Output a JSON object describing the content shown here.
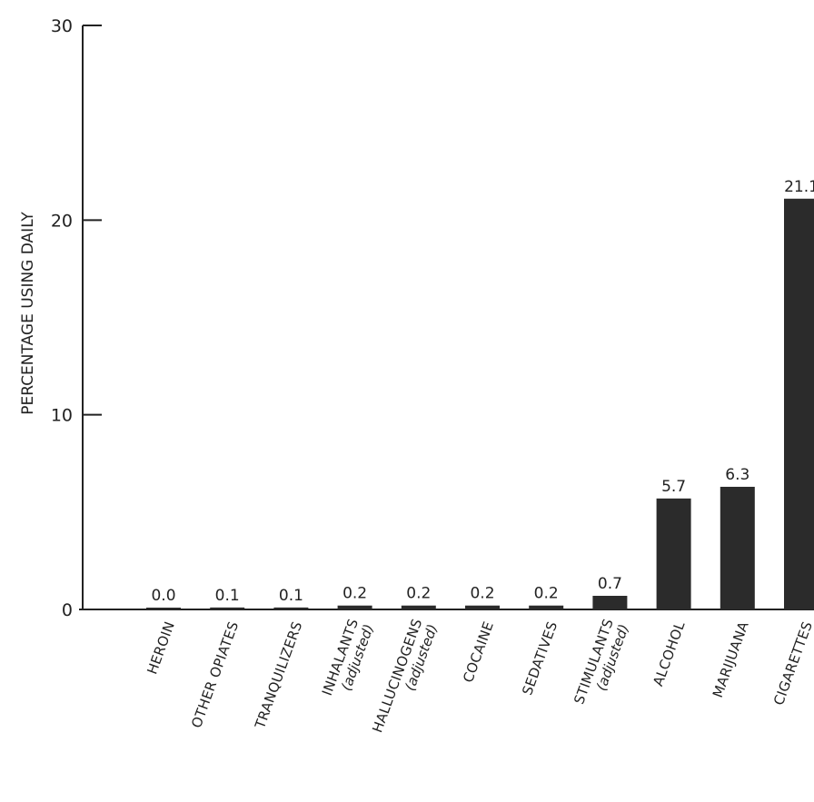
{
  "chart_data": {
    "type": "bar",
    "title": "",
    "xlabel": "",
    "ylabel": "PERCENTAGE USING DAILY",
    "ylim": [
      0,
      30
    ],
    "yticks": [
      "0",
      "10",
      "20",
      "30"
    ],
    "grid": false,
    "legend": "none",
    "bar_color": "#2b2b2b",
    "categories": [
      [
        "HEROIN"
      ],
      [
        "OTHER OPIATES"
      ],
      [
        "TRANQUILIZERS"
      ],
      [
        "INHALANTS",
        "(adjusted)"
      ],
      [
        "HALLUCINOGENS",
        "(adjusted)"
      ],
      [
        "COCAINE"
      ],
      [
        "SEDATIVES"
      ],
      [
        "STIMULANTS",
        "(adjusted)"
      ],
      [
        "ALCOHOL"
      ],
      [
        "MARIJUANA"
      ],
      [
        "CIGARETTES"
      ]
    ],
    "values": [
      0.0,
      0.1,
      0.1,
      0.2,
      0.2,
      0.2,
      0.2,
      0.7,
      5.7,
      6.3,
      21.1
    ],
    "value_labels": [
      "0.0",
      "0.1",
      "0.1",
      "0.2",
      "0.2",
      "0.2",
      "0.2",
      "0.7",
      "5.7",
      "6.3",
      "21.1"
    ]
  }
}
